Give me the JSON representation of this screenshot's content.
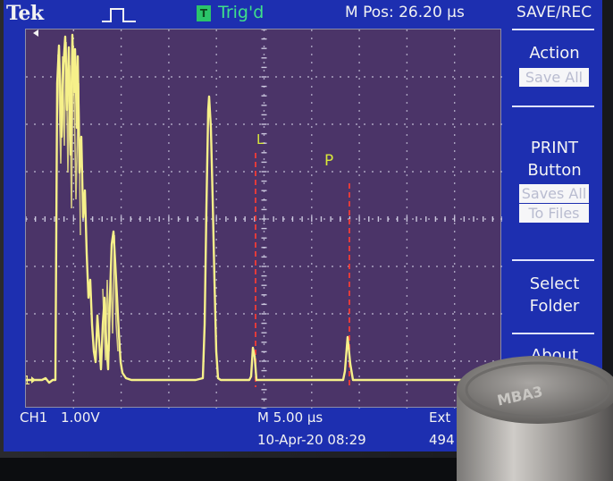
{
  "header": {
    "brand": "Tek",
    "trigger_icon": "T",
    "trigger_status": "Trig'd",
    "position": "M Pos: 26.20 μs",
    "menu_title": "SAVE/REC"
  },
  "menu": {
    "action": {
      "title": "Action",
      "value": "Save All"
    },
    "print": {
      "title1": "PRINT",
      "title2": "Button",
      "value1": "Saves All",
      "value2": "To Files"
    },
    "select": {
      "title1": "Select",
      "title2": "Folder"
    },
    "about": {
      "title": "About"
    }
  },
  "display": {
    "ch1_marker": "1",
    "cursor_l": "L",
    "cursor_p": "P",
    "colors": {
      "trace": "#f6f08a",
      "cursor": "#e23b3b",
      "grid_bg": "#4b3468",
      "screen_bg": "#1d2fb0"
    }
  },
  "footer": {
    "ch1": "CH1",
    "ch1_scale": "1.00V",
    "timebase": "M 5.00 μs",
    "trigger_source": "Ext",
    "date": "10-Apr-20 08:29",
    "count": "494"
  },
  "foreground_object": {
    "label": "MBA3"
  }
}
